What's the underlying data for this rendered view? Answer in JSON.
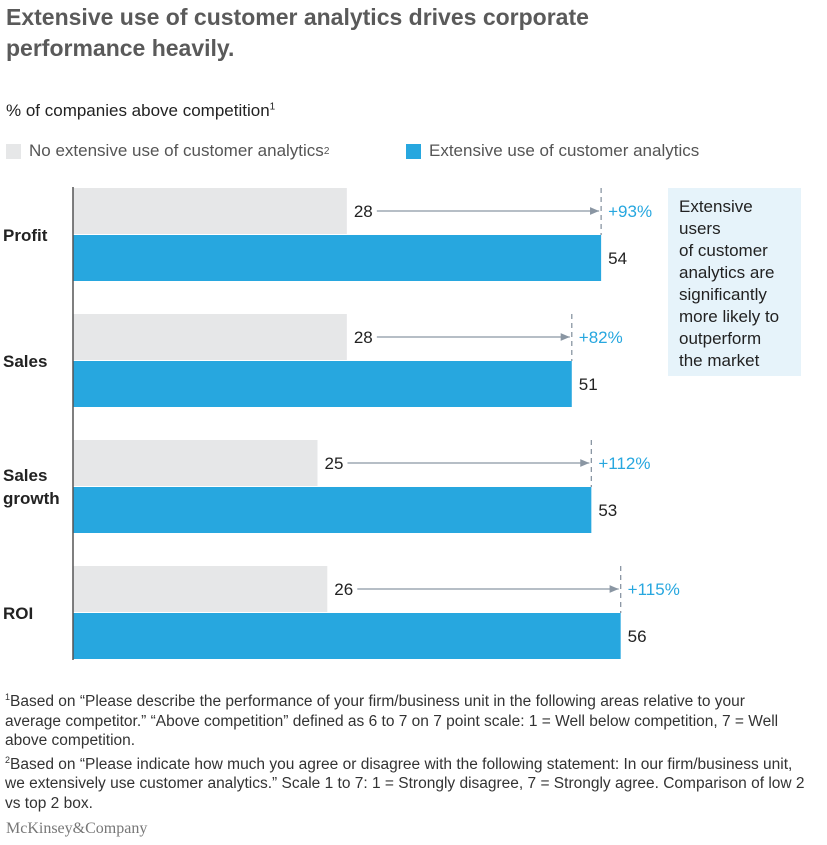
{
  "title": "Extensive use of customer analytics drives corporate performance heavily.",
  "subtitle": "% of companies above competition",
  "subtitle_footnote": "1",
  "callout": [
    "Extensive",
    "users",
    "of customer",
    "analytics are",
    "significantly",
    "more likely to",
    "outperform",
    "the market"
  ],
  "footnotes": {
    "n1_mark": "1",
    "n1": "Based on “Please describe the performance of your firm/business unit in the following areas relative to your average competitor.” “Above competition” defined as 6 to 7 on 7 point scale: 1 = Well below competition, 7 = Well above competition.",
    "n2_mark": "2",
    "n2": "Based on “Please indicate how much you agree or disagree with the following statement: In our firm/business unit, we extensively use customer analytics.” Scale 1 to 7: 1 = Strongly disagree, 7 = Strongly agree. Comparison of low 2 vs top 2 box."
  },
  "logo": "McKinsey&Company",
  "chart_data": {
    "type": "bar",
    "orientation": "horizontal",
    "categories": [
      "Profit",
      "Sales",
      "Sales growth",
      "ROI"
    ],
    "series": [
      {
        "name": "No extensive use of customer analytics",
        "name_footnote": "2",
        "color": "#e6e7e8",
        "values": [
          28,
          28,
          25,
          26
        ]
      },
      {
        "name": "Extensive use of customer analytics",
        "color": "#27a7df",
        "values": [
          54,
          51,
          53,
          56
        ]
      }
    ],
    "annotations": [
      "+93%",
      "+82%",
      "+112%",
      "+115%"
    ],
    "annotation_color": "#27a7df",
    "legend_position": "top-left",
    "grid": false
  }
}
